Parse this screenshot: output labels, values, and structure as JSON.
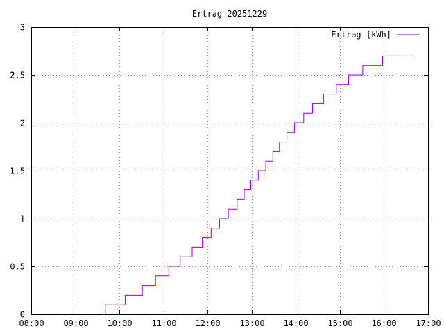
{
  "chart_data": {
    "type": "line",
    "title": "Ertrag 20251229",
    "xlabel": "",
    "ylabel": "",
    "xlim": [
      8,
      17
    ],
    "ylim": [
      0,
      3
    ],
    "x_ticks": [
      "08:00",
      "09:00",
      "10:00",
      "11:00",
      "12:00",
      "13:00",
      "14:00",
      "15:00",
      "16:00",
      "17:00"
    ],
    "y_ticks": [
      "0",
      "0.5",
      "1",
      "1.5",
      "2",
      "2.5",
      "3"
    ],
    "grid": true,
    "legend_position": "top-right",
    "series": [
      {
        "name": "Ertrag [kWh]",
        "color": "#9400d3",
        "step": true,
        "x": [
          9.6,
          9.68,
          10.13,
          10.52,
          10.82,
          11.12,
          11.38,
          11.65,
          11.88,
          12.08,
          12.27,
          12.47,
          12.67,
          12.83,
          12.98,
          13.15,
          13.32,
          13.48,
          13.63,
          13.8,
          13.97,
          14.18,
          14.38,
          14.63,
          14.92,
          15.2,
          15.52,
          15.97,
          16.67
        ],
        "y": [
          0,
          0.1,
          0.2,
          0.3,
          0.4,
          0.5,
          0.6,
          0.7,
          0.8,
          0.9,
          1.0,
          1.1,
          1.2,
          1.3,
          1.4,
          1.5,
          1.6,
          1.7,
          1.8,
          1.9,
          2.0,
          2.1,
          2.2,
          2.3,
          2.4,
          2.5,
          2.6,
          2.7,
          2.7
        ]
      }
    ]
  }
}
